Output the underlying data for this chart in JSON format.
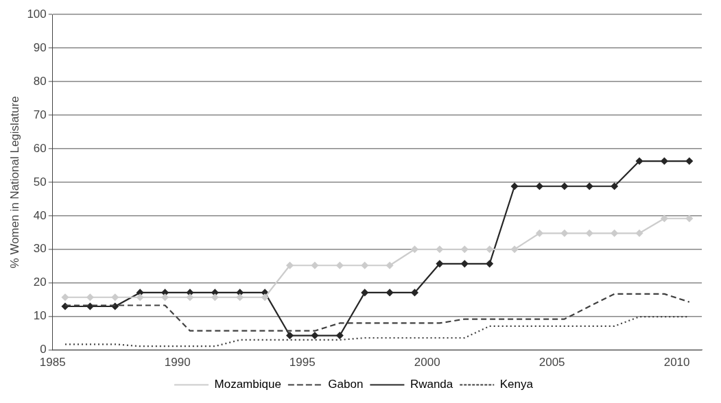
{
  "chart_data": {
    "type": "line",
    "ylabel": "% Women in National Legislature",
    "x": [
      1985.5,
      1986.5,
      1987.5,
      1988.5,
      1989.5,
      1990.5,
      1991.5,
      1992.5,
      1993.5,
      1994.5,
      1995.5,
      1996.5,
      1997.5,
      1998.5,
      1999.5,
      2000.5,
      2001.5,
      2002.5,
      2003.5,
      2004.5,
      2005.5,
      2006.5,
      2007.5,
      2008.5,
      2009.5,
      2010.5
    ],
    "series": [
      {
        "name": "Mozambique",
        "color": "#cccccc",
        "line_style": "solid",
        "marker": "diamond",
        "values": [
          15.7,
          15.7,
          15.7,
          15.7,
          15.7,
          15.7,
          15.7,
          15.7,
          15.7,
          25.2,
          25.2,
          25.2,
          25.2,
          25.2,
          30,
          30,
          30,
          30,
          30,
          34.8,
          34.8,
          34.8,
          34.8,
          34.8,
          39.2,
          39.2
        ]
      },
      {
        "name": "Gabon",
        "color": "#404040",
        "line_style": "dashed",
        "marker": "none",
        "values": [
          13.3,
          13.3,
          13.3,
          13.3,
          13.3,
          5.7,
          5.7,
          5.7,
          5.7,
          5.7,
          5.7,
          8,
          8,
          8,
          8,
          8,
          9.2,
          9.2,
          9.2,
          9.2,
          9.2,
          13,
          16.7,
          16.7,
          16.7,
          14.3
        ]
      },
      {
        "name": "Rwanda",
        "color": "#262626",
        "line_style": "solid",
        "marker": "diamond",
        "values": [
          13,
          13,
          13,
          17.1,
          17.1,
          17.1,
          17.1,
          17.1,
          17.1,
          4.3,
          4.3,
          4.3,
          17.1,
          17.1,
          17.1,
          25.7,
          25.7,
          25.7,
          48.8,
          48.8,
          48.8,
          48.8,
          48.8,
          56.3,
          56.3,
          56.3
        ]
      },
      {
        "name": "Kenya",
        "color": "#404040",
        "line_style": "dotted",
        "marker": "none",
        "values": [
          1.7,
          1.7,
          1.7,
          1.1,
          1.1,
          1.1,
          1.1,
          3,
          3,
          3,
          3,
          3,
          3.6,
          3.6,
          3.6,
          3.6,
          3.6,
          7.1,
          7.1,
          7.1,
          7.1,
          7.1,
          7.1,
          9.9,
          9.9,
          9.9
        ]
      }
    ],
    "xlim": [
      1985,
      2011
    ],
    "xticks": [
      1985,
      1990,
      1995,
      2000,
      2005,
      2010
    ],
    "ylim": [
      0,
      100
    ],
    "yticks": [
      0,
      10,
      20,
      30,
      40,
      50,
      60,
      70,
      80,
      90,
      100
    ],
    "grid": "y",
    "legend": "bottom"
  }
}
